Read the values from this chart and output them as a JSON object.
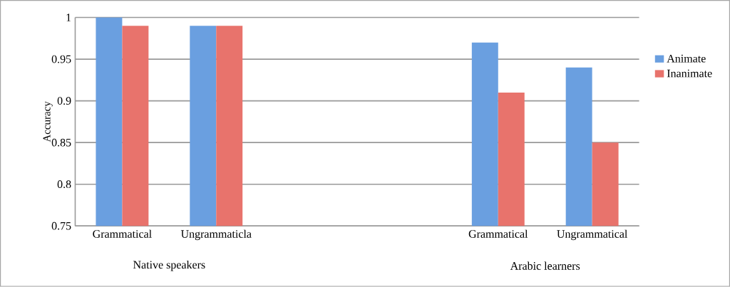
{
  "chart_data": {
    "type": "bar",
    "ylabel": "Accuracy",
    "categories": [
      "Grammatical",
      "Ungrammaticla",
      null,
      null,
      "Grammatical",
      "Ungrammatical"
    ],
    "series": [
      {
        "name": "Animate",
        "color": "#6a9fe0",
        "values": [
          1,
          0.99,
          null,
          null,
          0.97,
          0.94
        ]
      },
      {
        "name": "Inanimate",
        "color": "#e8736c",
        "values": [
          0.99,
          0.99,
          null,
          null,
          0.91,
          0.85
        ]
      }
    ],
    "ylim": [
      0.75,
      1
    ],
    "yticks": [
      0.75,
      0.8,
      0.85,
      0.9,
      0.95,
      1
    ],
    "grid": "y",
    "legend": "right",
    "annotations": [
      "Native speakers",
      "Arabic learners"
    ]
  }
}
